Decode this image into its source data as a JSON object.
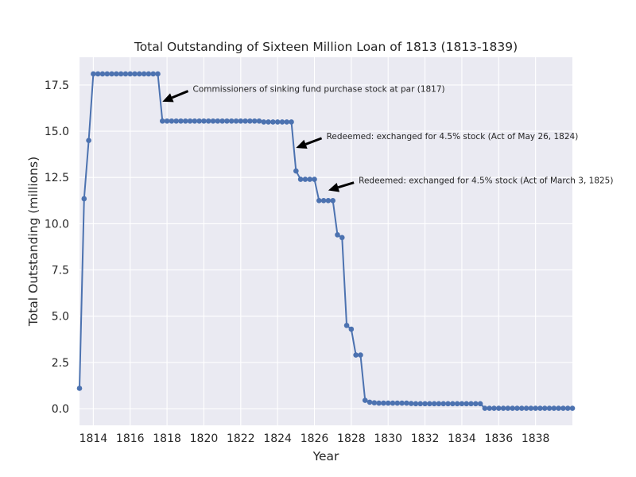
{
  "chart_data": {
    "type": "line",
    "title": "Total Outstanding of Sixteen Million Loan of 1813 (1813-1839)",
    "xlabel": "Year",
    "ylabel": "Total Outstanding (millions)",
    "xlim": [
      1813.25,
      1840.0
    ],
    "ylim": [
      -0.9,
      19.0
    ],
    "xticks": [
      1814,
      1816,
      1818,
      1820,
      1822,
      1824,
      1826,
      1828,
      1830,
      1832,
      1834,
      1836,
      1838
    ],
    "xtick_labels": [
      "1814",
      "1816",
      "1818",
      "1820",
      "1822",
      "1824",
      "1826",
      "1828",
      "1830",
      "1832",
      "1834",
      "1836",
      "1838"
    ],
    "yticks": [
      0.0,
      2.5,
      5.0,
      7.5,
      10.0,
      12.5,
      15.0,
      17.5
    ],
    "ytick_labels": [
      "0.0",
      "2.5",
      "5.0",
      "7.5",
      "10.0",
      "12.5",
      "15.0",
      "17.5"
    ],
    "grid": true,
    "colors": {
      "line": "#4c72b0",
      "background": "#eaeaf2",
      "grid": "#ffffff",
      "arrow": "#000000"
    },
    "series": [
      {
        "x": [
          1813.25,
          1813.5,
          1813.75,
          1814.0,
          1814.25,
          1814.5,
          1814.75,
          1815.0,
          1815.25,
          1815.5,
          1815.75,
          1816.0,
          1816.25,
          1816.5,
          1816.75,
          1817.0,
          1817.25,
          1817.5,
          1817.75,
          1818.0,
          1818.25,
          1818.5,
          1818.75,
          1819.0,
          1819.25,
          1819.5,
          1819.75,
          1820.0,
          1820.25,
          1820.5,
          1820.75,
          1821.0,
          1821.25,
          1821.5,
          1821.75,
          1822.0,
          1822.25,
          1822.5,
          1822.75,
          1823.0,
          1823.25,
          1823.5,
          1823.75,
          1824.0,
          1824.25,
          1824.5,
          1824.75,
          1825.0,
          1825.25,
          1825.5,
          1825.75,
          1826.0,
          1826.25,
          1826.5,
          1826.75,
          1827.0,
          1827.25,
          1827.5,
          1827.75,
          1828.0,
          1828.25,
          1828.5,
          1828.75,
          1829.0,
          1829.25,
          1829.5,
          1829.75,
          1830.0,
          1830.25,
          1830.5,
          1830.75,
          1831.0,
          1831.25,
          1831.5,
          1831.75,
          1832.0,
          1832.25,
          1832.5,
          1832.75,
          1833.0,
          1833.25,
          1833.5,
          1833.75,
          1834.0,
          1834.25,
          1834.5,
          1834.75,
          1835.0,
          1835.25,
          1835.5,
          1835.75,
          1836.0,
          1836.25,
          1836.5,
          1836.75,
          1837.0,
          1837.25,
          1837.5,
          1837.75,
          1838.0,
          1838.25,
          1838.5,
          1838.75,
          1839.0,
          1839.25,
          1839.5,
          1839.75,
          1840.0
        ],
        "values": [
          1.1,
          11.35,
          14.5,
          18.1,
          18.1,
          18.1,
          18.1,
          18.1,
          18.1,
          18.1,
          18.1,
          18.1,
          18.1,
          18.1,
          18.1,
          18.1,
          18.1,
          18.1,
          15.55,
          15.55,
          15.55,
          15.55,
          15.55,
          15.55,
          15.55,
          15.55,
          15.55,
          15.55,
          15.55,
          15.55,
          15.55,
          15.55,
          15.55,
          15.55,
          15.55,
          15.55,
          15.55,
          15.55,
          15.55,
          15.55,
          15.5,
          15.5,
          15.5,
          15.5,
          15.5,
          15.5,
          15.5,
          12.85,
          12.4,
          12.4,
          12.4,
          12.4,
          11.25,
          11.25,
          11.25,
          11.25,
          9.4,
          9.25,
          4.5,
          4.3,
          2.9,
          2.9,
          0.45,
          0.35,
          0.32,
          0.3,
          0.3,
          0.3,
          0.3,
          0.3,
          0.3,
          0.3,
          0.28,
          0.27,
          0.27,
          0.27,
          0.27,
          0.27,
          0.27,
          0.27,
          0.27,
          0.27,
          0.27,
          0.27,
          0.27,
          0.27,
          0.27,
          0.27,
          0.02,
          0.02,
          0.02,
          0.02,
          0.02,
          0.02,
          0.02,
          0.02,
          0.02,
          0.02,
          0.02,
          0.02,
          0.02,
          0.02,
          0.02,
          0.02,
          0.02,
          0.02,
          0.02,
          0.02
        ]
      }
    ],
    "annotations": [
      {
        "text": "Commissioners of sinking fund purchase stock at par (1817)",
        "xy": [
          1817.75,
          16.6
        ],
        "xytext": [
          1819.4,
          17.3
        ]
      },
      {
        "text": "Redeemed: exchanged for 4.5% stock (Act of May 26, 1824)",
        "xy": [
          1825.0,
          14.1
        ],
        "xytext": [
          1826.65,
          14.75
        ]
      },
      {
        "text": "Redeemed: exchanged for 4.5% stock (Act of March 3, 1825)",
        "xy": [
          1826.75,
          11.8
        ],
        "xytext": [
          1828.4,
          12.35
        ]
      }
    ]
  }
}
